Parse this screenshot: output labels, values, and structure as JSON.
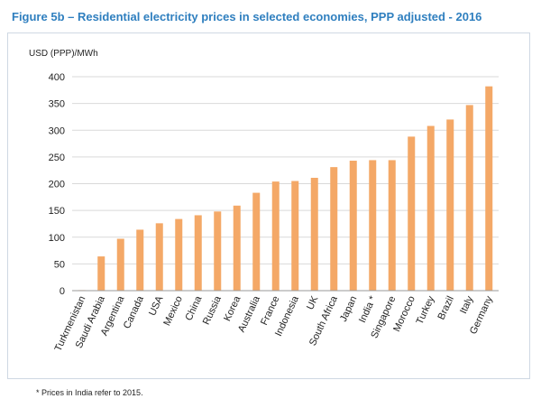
{
  "figure_title": "Figure 5b – Residential electricity prices in selected economies, PPP adjusted - 2016",
  "footnote": "* Prices in India refer to 2015.",
  "chart_data": {
    "type": "bar",
    "title": "",
    "xlabel": "",
    "ylabel": "USD (PPP)/MWh",
    "ylim": [
      0,
      400
    ],
    "yticks": [
      0,
      50,
      100,
      150,
      200,
      250,
      300,
      350,
      400
    ],
    "grid": true,
    "legend": "none",
    "bar_color": "#f4a867",
    "categories": [
      "Turkmenistan",
      "Saudi Arabia",
      "Argentina",
      "Canada",
      "USA",
      "Mexico",
      "China",
      "Russia",
      "Korea",
      "Australia",
      "France",
      "Indonesia",
      "UK",
      "South Africa",
      "Japan",
      "India *",
      "Singapore",
      "Morocco",
      "Turkey",
      "Brazil",
      "Italy",
      "Germany"
    ],
    "values": [
      1,
      64,
      97,
      114,
      126,
      134,
      141,
      148,
      159,
      183,
      204,
      205,
      211,
      231,
      243,
      244,
      244,
      288,
      308,
      320,
      347,
      382
    ]
  }
}
